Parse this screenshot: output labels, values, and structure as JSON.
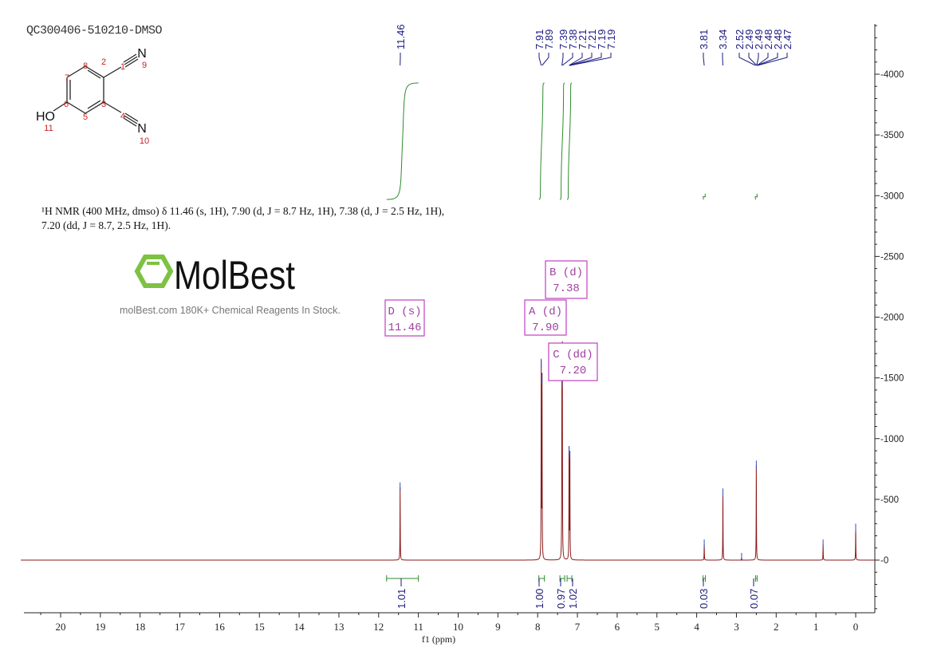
{
  "sample_id": "QC300406-510210-DMSO",
  "nmr_description": {
    "line1": "¹H NMR (400 MHz, dmso) δ 11.46 (s, 1H), 7.90 (d, J = 8.7 Hz, 1H), 7.38 (d, J = 2.5 Hz, 1H),",
    "line2": "7.20 (dd, J = 8.7, 2.5 Hz, 1H)."
  },
  "structure": {
    "atoms": [
      "1",
      "2",
      "3",
      "4",
      "5",
      "6",
      "7",
      "8"
    ],
    "n9": "N",
    "n9_num": "9",
    "n10": "N",
    "n10_num": "10",
    "ho": "HO",
    "ho_num": "11"
  },
  "watermark": {
    "logo_text": "MolBest",
    "tagline": "molBest.com 180K+ Chemical Reagents In Stock."
  },
  "colors": {
    "spectrum": "#8b1a1a",
    "integral": "#2e8b2e",
    "peak_label": "#1a1a80",
    "multiplet_box": "#c040c0",
    "logo_green": "#7dc242",
    "atom_number": "#cc2222"
  },
  "chart_data": {
    "type": "line",
    "xlabel": "f1 (ppm)",
    "xlim": [
      21,
      -0.5
    ],
    "x_reversed": true,
    "ylim": [
      -414,
      4414
    ],
    "x_ticks": [
      "20",
      "19",
      "18",
      "17",
      "16",
      "15",
      "14",
      "13",
      "12",
      "11",
      "10",
      "9",
      "8",
      "7",
      "6",
      "5",
      "4",
      "3",
      "2",
      "1",
      "0"
    ],
    "y_ticks": [
      "0",
      "500",
      "1000",
      "1500",
      "2000",
      "2500",
      "3000",
      "3500",
      "4000"
    ],
    "peaks": [
      {
        "ppm": 11.46,
        "height": 600
      },
      {
        "ppm": 7.91,
        "height": 1600
      },
      {
        "ppm": 7.89,
        "height": 1480
      },
      {
        "ppm": 7.39,
        "height": 1450
      },
      {
        "ppm": 7.38,
        "height": 1600
      },
      {
        "ppm": 7.21,
        "height": 900
      },
      {
        "ppm": 7.19,
        "height": 860
      },
      {
        "ppm": 3.81,
        "height": 130
      },
      {
        "ppm": 3.34,
        "height": 550
      },
      {
        "ppm": 2.87,
        "height": 20
      },
      {
        "ppm": 2.5,
        "height": 780
      },
      {
        "ppm": 0.82,
        "height": 130
      },
      {
        "ppm": 0.0,
        "height": 260
      }
    ],
    "peak_labels": [
      "11.46",
      "7.91",
      "7.89",
      "7.39",
      "7.38",
      "7.21",
      "7.21",
      "7.19",
      "7.19",
      "3.81",
      "3.34",
      "2.52",
      "2.49",
      "2.49",
      "2.48",
      "2.48",
      "2.47"
    ],
    "integrals": [
      {
        "from": 11.8,
        "to": 11.0,
        "value": "1.01"
      },
      {
        "from": 7.97,
        "to": 7.83,
        "value": "1.00"
      },
      {
        "from": 7.44,
        "to": 7.32,
        "value": "0.97"
      },
      {
        "from": 7.26,
        "to": 7.14,
        "value": "1.02"
      },
      {
        "from": 3.84,
        "to": 3.78,
        "value": "0.03"
      },
      {
        "from": 2.52,
        "to": 2.48,
        "value": "0.07"
      }
    ],
    "multiplets": [
      {
        "name": "B (d)",
        "shift": "7.38"
      },
      {
        "name": "D (s)",
        "shift": "11.46"
      },
      {
        "name": "A (d)",
        "shift": "7.90"
      },
      {
        "name": "C (dd)",
        "shift": "7.20"
      }
    ]
  }
}
